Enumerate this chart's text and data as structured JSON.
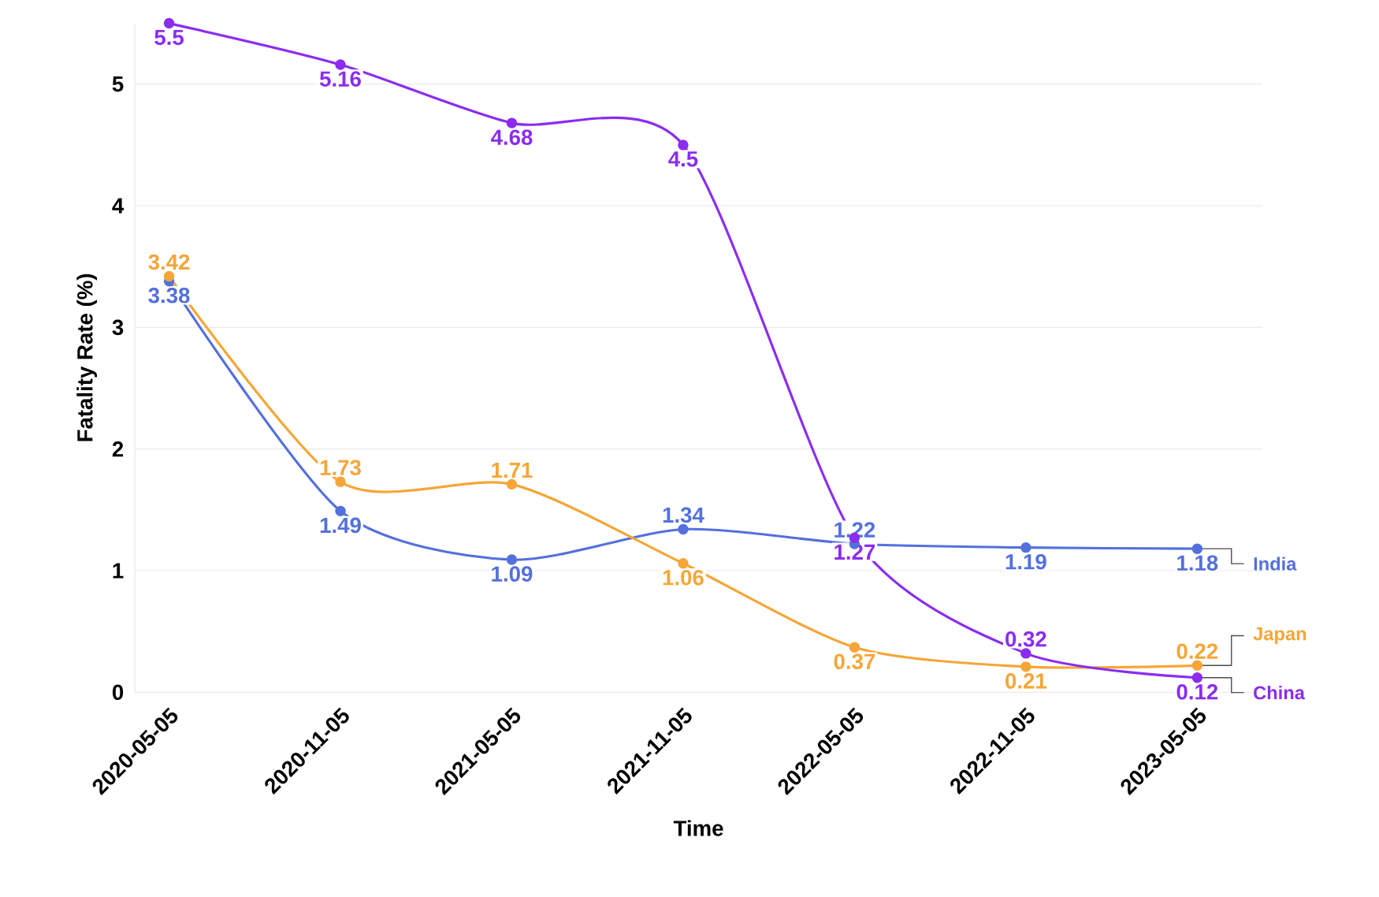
{
  "chart_data": {
    "type": "line",
    "xlabel": "Time",
    "ylabel": "Fatality Rate (%)",
    "categories": [
      "2020-05-05",
      "2020-11-05",
      "2021-05-05",
      "2021-11-05",
      "2022-05-05",
      "2022-11-05",
      "2023-05-05"
    ],
    "series": [
      {
        "name": "India",
        "color": "#5470dd",
        "values": [
          3.38,
          1.49,
          1.09,
          1.34,
          1.22,
          1.19,
          1.18
        ]
      },
      {
        "name": "Japan",
        "color": "#f5a637",
        "values": [
          3.42,
          1.73,
          1.71,
          1.06,
          0.37,
          0.21,
          0.22
        ]
      },
      {
        "name": "China",
        "color": "#8b2cf0",
        "values": [
          5.5,
          5.16,
          4.68,
          4.5,
          1.27,
          0.32,
          0.12
        ]
      }
    ],
    "ylim": [
      0,
      5.5
    ],
    "yticks": [
      0,
      1,
      2,
      3,
      4,
      5
    ],
    "grid": "y",
    "marker": "circle",
    "line_style": "solid",
    "data_labels": true
  }
}
